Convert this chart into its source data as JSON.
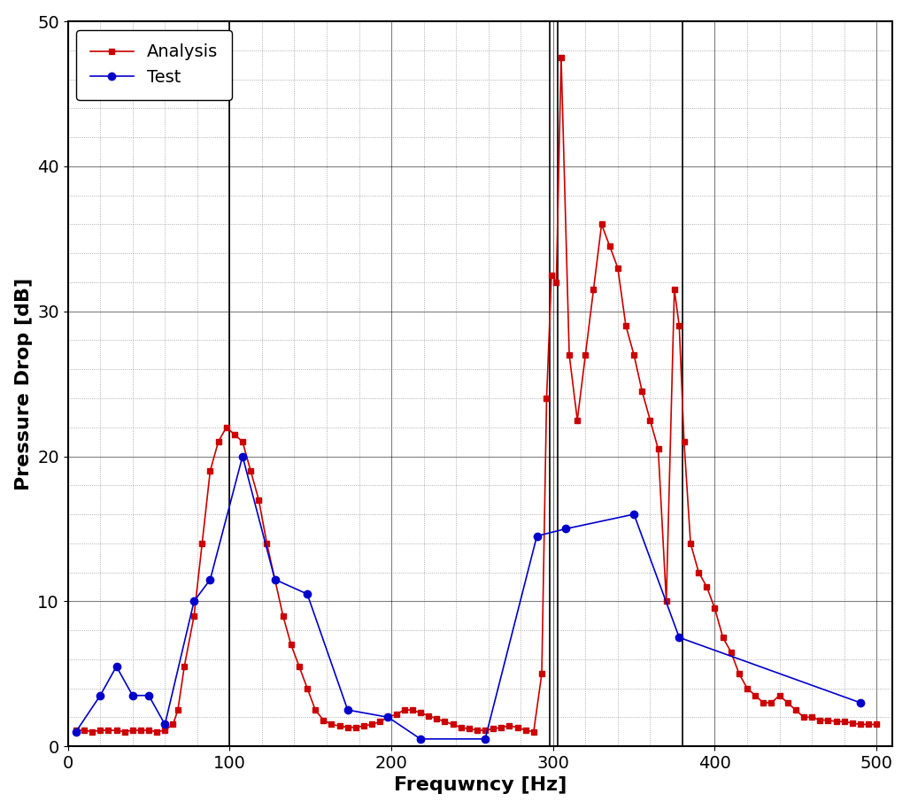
{
  "analysis_x": [
    5,
    10,
    15,
    20,
    25,
    30,
    35,
    40,
    45,
    50,
    55,
    60,
    65,
    68,
    72,
    78,
    83,
    88,
    93,
    98,
    103,
    108,
    113,
    118,
    123,
    128,
    133,
    138,
    143,
    148,
    153,
    158,
    163,
    168,
    173,
    178,
    183,
    188,
    193,
    198,
    203,
    208,
    213,
    218,
    223,
    228,
    233,
    238,
    243,
    248,
    253,
    258,
    263,
    268,
    273,
    278,
    283,
    288,
    293,
    296,
    299,
    302,
    305,
    310,
    315,
    320,
    325,
    330,
    335,
    340,
    345,
    350,
    355,
    360,
    365,
    370,
    375,
    378,
    381,
    385,
    390,
    395,
    400,
    405,
    410,
    415,
    420,
    425,
    430,
    435,
    440,
    445,
    450,
    455,
    460,
    465,
    470,
    475,
    480,
    485,
    490,
    495,
    500
  ],
  "analysis_y": [
    1.1,
    1.1,
    1.0,
    1.1,
    1.1,
    1.1,
    1.0,
    1.1,
    1.1,
    1.1,
    1.0,
    1.1,
    1.5,
    2.5,
    5.5,
    9.0,
    14.0,
    19.0,
    21.0,
    22.0,
    21.5,
    21.0,
    19.0,
    17.0,
    14.0,
    11.5,
    9.0,
    7.0,
    5.5,
    4.0,
    2.5,
    1.8,
    1.5,
    1.4,
    1.3,
    1.3,
    1.4,
    1.5,
    1.7,
    2.0,
    2.2,
    2.5,
    2.5,
    2.3,
    2.1,
    1.9,
    1.7,
    1.5,
    1.3,
    1.2,
    1.1,
    1.1,
    1.2,
    1.3,
    1.4,
    1.3,
    1.1,
    1.0,
    5.0,
    24.0,
    32.5,
    32.0,
    47.5,
    27.0,
    22.5,
    27.0,
    31.5,
    36.0,
    34.5,
    33.0,
    29.0,
    27.0,
    24.5,
    22.5,
    20.5,
    10.0,
    31.5,
    29.0,
    21.0,
    14.0,
    12.0,
    11.0,
    9.5,
    7.5,
    6.5,
    5.0,
    4.0,
    3.5,
    3.0,
    3.0,
    3.5,
    3.0,
    2.5,
    2.0,
    2.0,
    1.8,
    1.8,
    1.7,
    1.7,
    1.6,
    1.5,
    1.5,
    1.5
  ],
  "test_x": [
    5,
    20,
    30,
    40,
    50,
    60,
    78,
    88,
    108,
    128,
    148,
    173,
    198,
    218,
    258,
    290,
    308,
    350,
    378,
    490
  ],
  "test_y": [
    1.0,
    3.5,
    5.5,
    3.5,
    3.5,
    1.5,
    10.0,
    11.5,
    20.0,
    11.5,
    10.5,
    2.5,
    2.0,
    0.5,
    0.5,
    14.5,
    15.0,
    16.0,
    7.5,
    3.0
  ],
  "analysis_color": "#cc0000",
  "test_color": "#0000cc",
  "background_color": "#ffffff",
  "xlabel": "Frequwncy [Hz]",
  "ylabel": "Pressure Drop [dB]",
  "xlim": [
    0,
    510
  ],
  "ylim": [
    0,
    50
  ],
  "xticks": [
    0,
    100,
    200,
    300,
    400,
    500
  ],
  "yticks": [
    0,
    10,
    20,
    30,
    40,
    50
  ],
  "vlines": [
    100,
    298,
    303,
    380
  ],
  "legend_analysis": "Analysis",
  "legend_test": "Test",
  "axis_fontsize": 16,
  "tick_fontsize": 14,
  "legend_fontsize": 14
}
